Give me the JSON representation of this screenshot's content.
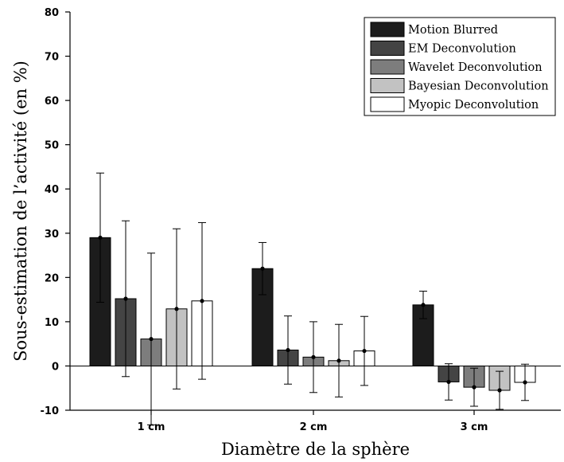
{
  "chart_data": {
    "type": "bar",
    "xlabel": "Diamètre de la sphère",
    "ylabel": "Sous-estimation de l’activité (en %)",
    "ylim": [
      -10,
      80
    ],
    "yticks": [
      -10,
      0,
      10,
      20,
      30,
      40,
      50,
      60,
      70,
      80
    ],
    "categories": [
      "1 cm",
      "2 cm",
      "3 cm"
    ],
    "legend_position": "top-right",
    "grid": false,
    "series": [
      {
        "name": "Motion Blurred",
        "color": "#1c1c1c",
        "values": [
          29,
          22,
          13.8
        ],
        "err_low": [
          14.6,
          5.9,
          3.1
        ],
        "err_high": [
          14.6,
          5.9,
          3.1
        ]
      },
      {
        "name": "EM Deconvolution",
        "color": "#444444",
        "values": [
          15.2,
          3.6,
          -3.6
        ],
        "err_low": [
          17.6,
          7.7,
          4.1
        ],
        "err_high": [
          17.6,
          7.7,
          4.1
        ]
      },
      {
        "name": "Wavelet Deconvolution",
        "color": "#7d7d7d",
        "values": [
          6.1,
          2.0,
          -4.8
        ],
        "err_low": [
          19.4,
          8.0,
          4.3
        ],
        "err_high": [
          19.4,
          8.0,
          4.3
        ]
      },
      {
        "name": "Bayesian Deconvolution",
        "color": "#c2c2c2",
        "values": [
          12.9,
          1.2,
          -5.5
        ],
        "err_low": [
          18.1,
          8.2,
          4.3
        ],
        "err_high": [
          18.1,
          8.2,
          4.3
        ]
      },
      {
        "name": "Myopic Deconvolution",
        "color": "#ffffff",
        "values": [
          14.7,
          3.4,
          -3.7
        ],
        "err_low": [
          17.7,
          7.8,
          4.1
        ],
        "err_high": [
          17.7,
          7.8,
          4.1
        ]
      }
    ]
  }
}
